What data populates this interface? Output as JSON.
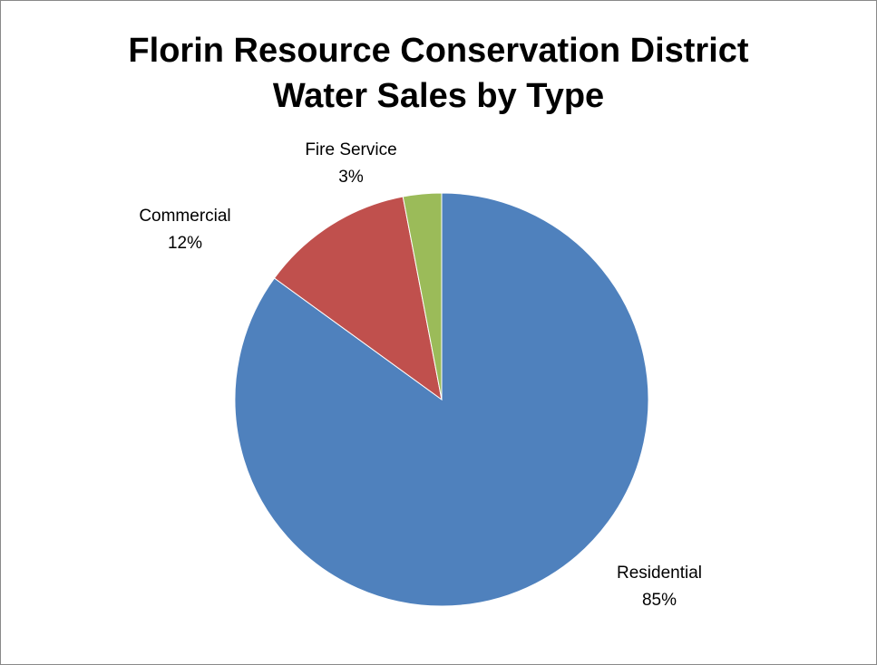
{
  "chart_data": {
    "type": "pie",
    "title_lines": [
      "Florin Resource Conservation District",
      "Water Sales by Type"
    ],
    "slices": [
      {
        "name": "Residential",
        "value": 85,
        "label": "85%",
        "color": "#4F81BD"
      },
      {
        "name": "Commercial",
        "value": 12,
        "label": "12%",
        "color": "#C0504D"
      },
      {
        "name": "Fire Service",
        "value": 3,
        "label": "3%",
        "color": "#9BBB59"
      }
    ],
    "legend": "none",
    "data_labels": "outside-end"
  }
}
